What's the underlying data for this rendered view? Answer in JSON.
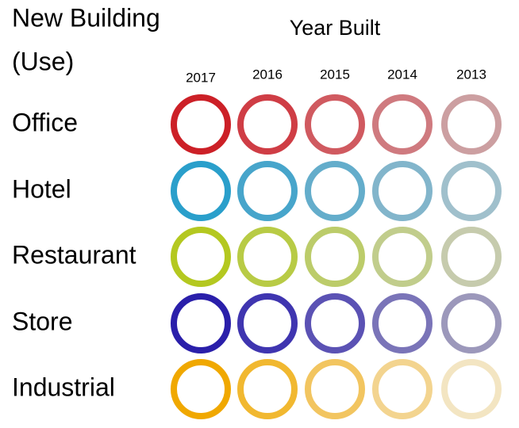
{
  "title_lines": [
    "New Building",
    "(Use)"
  ],
  "column_header": "Year Built",
  "years": [
    "2017",
    "2016",
    "2015",
    "2014",
    "2013"
  ],
  "rows": [
    {
      "label": "Office",
      "colors": [
        "#cc2027",
        "#cf3d45",
        "#d05a60",
        "#cf7a7f",
        "#cc9fa1"
      ]
    },
    {
      "label": "Hotel",
      "colors": [
        "#2a9fcb",
        "#47a5cb",
        "#64adcb",
        "#82b5cb",
        "#a0c0cc"
      ]
    },
    {
      "label": "Restaurant",
      "colors": [
        "#b4c820",
        "#b8cb45",
        "#bccc6a",
        "#c1cd8c",
        "#c6cbad"
      ]
    },
    {
      "label": "Store",
      "colors": [
        "#2a1faa",
        "#3f35b0",
        "#5b52b4",
        "#7a74b8",
        "#9c98bb"
      ]
    },
    {
      "label": "Industrial",
      "colors": [
        "#f0a800",
        "#f1b830",
        "#f2c560",
        "#f3d48f",
        "#f3e5c2"
      ]
    }
  ]
}
